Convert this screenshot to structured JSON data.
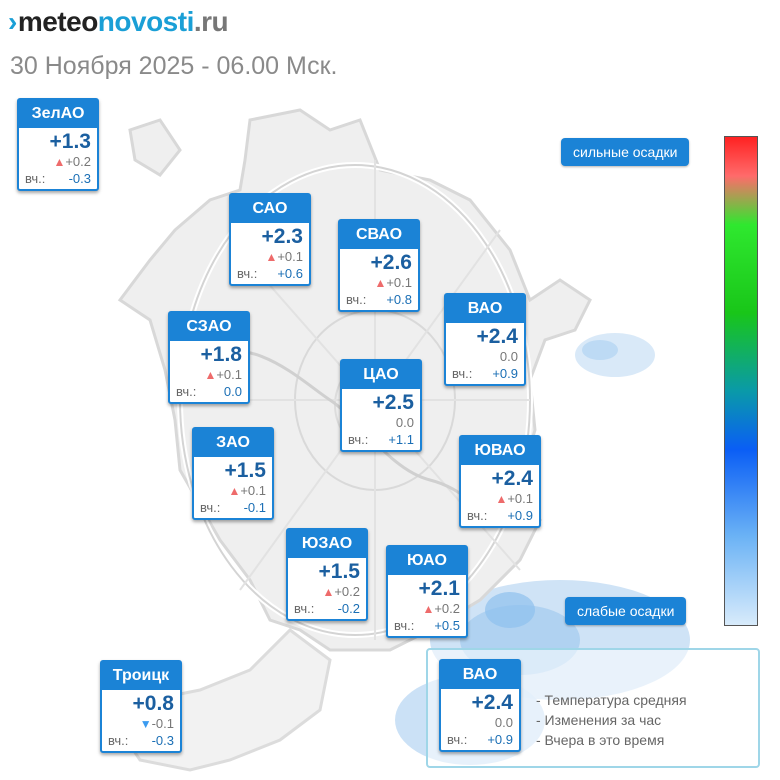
{
  "logo": {
    "mark": "›",
    "part1": "meteo",
    "part2": "novosti",
    "part3": ".ru"
  },
  "subtitle": "30 Ноября 2025 - 06.00 Мск.",
  "precip_scale": {
    "high_label": "сильные осадки",
    "low_label": "слабые осадки"
  },
  "yesterday_label": "вч.:",
  "districts": [
    {
      "id": "zelao",
      "name": "ЗелАО",
      "temp": "+1.3",
      "dir": "up",
      "change": "+0.2",
      "yesterday": "-0.3"
    },
    {
      "id": "sao",
      "name": "САО",
      "temp": "+2.3",
      "dir": "up",
      "change": "+0.1",
      "yesterday": "+0.6"
    },
    {
      "id": "svao",
      "name": "СВАО",
      "temp": "+2.6",
      "dir": "up",
      "change": "+0.1",
      "yesterday": "+0.8"
    },
    {
      "id": "vao",
      "name": "ВАО",
      "temp": "+2.4",
      "dir": "none",
      "change": "0.0",
      "yesterday": "+0.9"
    },
    {
      "id": "szao",
      "name": "СЗАО",
      "temp": "+1.8",
      "dir": "up",
      "change": "+0.1",
      "yesterday": "0.0"
    },
    {
      "id": "cao",
      "name": "ЦАО",
      "temp": "+2.5",
      "dir": "none",
      "change": "0.0",
      "yesterday": "+1.1"
    },
    {
      "id": "zao",
      "name": "ЗАО",
      "temp": "+1.5",
      "dir": "up",
      "change": "+0.1",
      "yesterday": "-0.1"
    },
    {
      "id": "yuvao",
      "name": "ЮВАО",
      "temp": "+2.4",
      "dir": "up",
      "change": "+0.1",
      "yesterday": "+0.9"
    },
    {
      "id": "yuzao",
      "name": "ЮЗАО",
      "temp": "+1.5",
      "dir": "up",
      "change": "+0.2",
      "yesterday": "-0.2"
    },
    {
      "id": "yuao",
      "name": "ЮАО",
      "temp": "+2.1",
      "dir": "up",
      "change": "+0.2",
      "yesterday": "+0.5"
    },
    {
      "id": "troitsk",
      "name": "Троицк",
      "temp": "+0.8",
      "dir": "down",
      "change": "-0.1",
      "yesterday": "-0.3"
    }
  ],
  "legend": {
    "example": {
      "name": "ВАО",
      "temp": "+2.4",
      "dir": "none",
      "change": "0.0",
      "yesterday": "+0.9"
    },
    "lines": [
      "- Температура средняя",
      "- Изменения за час",
      "- Вчера в это время"
    ]
  },
  "colors": {
    "accent": "#1b83d6",
    "temp_text": "#1b5fa0",
    "arrow_up": "#ee6b6b",
    "arrow_down": "#3b9bf0"
  }
}
